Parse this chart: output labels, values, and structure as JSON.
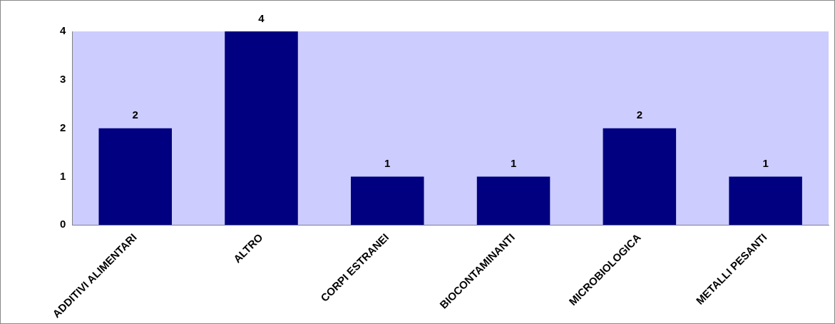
{
  "chart_data": {
    "type": "bar",
    "categories": [
      "ADDITIVI ALIMENTARI",
      "ALTRO",
      "CORPI ESTRANEI",
      "BIOCONTAMINANTI",
      "MICROBIOLOGICA",
      "METALLI PESANTI"
    ],
    "values": [
      2,
      4,
      1,
      1,
      2,
      1
    ],
    "color": "#000080",
    "ylim": [
      0,
      4
    ],
    "yticks": [
      0,
      1,
      2,
      3,
      4
    ],
    "grid": false,
    "legend": false,
    "data_labels": true
  }
}
